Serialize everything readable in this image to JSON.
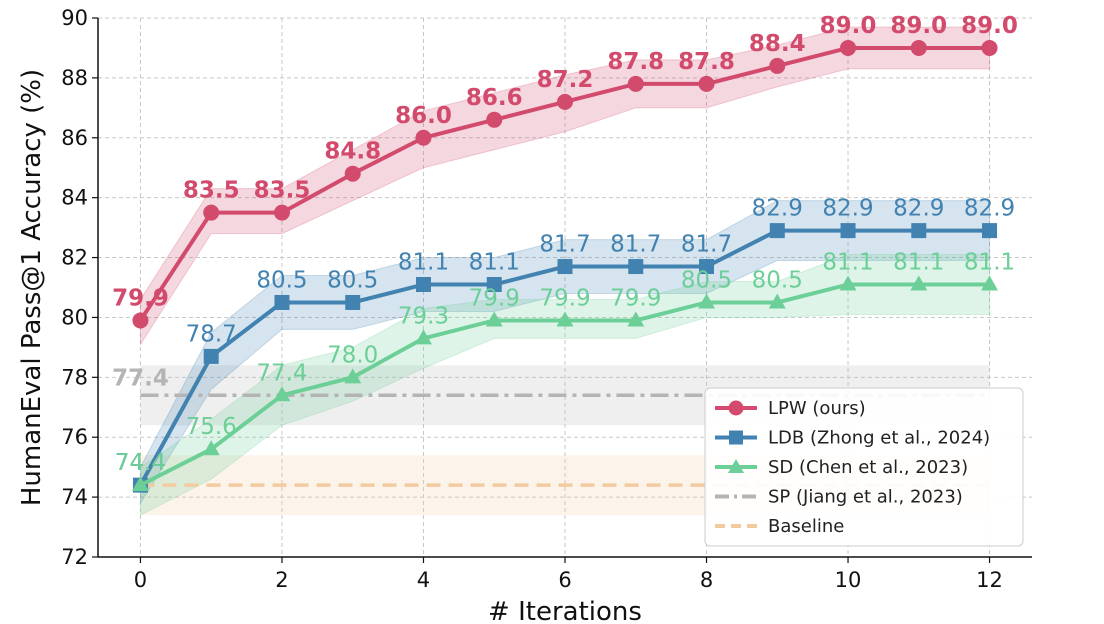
{
  "chart_data": {
    "type": "line",
    "xlabel": "# Iterations",
    "ylabel": "HumanEval Pass@1 Accuracy (%)",
    "xlim": [
      -0.6,
      12.6
    ],
    "ylim": [
      72,
      90
    ],
    "xticks": [
      0,
      2,
      4,
      6,
      8,
      10,
      12
    ],
    "yticks": [
      72,
      74,
      76,
      78,
      80,
      82,
      84,
      86,
      88,
      90
    ],
    "grid": true,
    "legend_position": "bottom-right",
    "x": [
      0,
      1,
      2,
      3,
      4,
      5,
      6,
      7,
      8,
      9,
      10,
      11,
      12
    ],
    "series": [
      {
        "name": "LPW (ours)",
        "color": "#d24a6c",
        "marker": "circle",
        "bold_labels": true,
        "values": [
          79.9,
          83.5,
          83.5,
          84.8,
          86.0,
          86.6,
          87.2,
          87.8,
          87.8,
          88.4,
          89.0,
          89.0,
          89.0
        ],
        "labels": [
          "79.9",
          "83.5",
          "83.5",
          "84.8",
          "86.0",
          "86.6",
          "87.2",
          "87.8",
          "87.8",
          "88.4",
          "89.0",
          "89.0",
          "89.0"
        ],
        "band_lower": [
          79.1,
          82.8,
          82.8,
          83.9,
          85.0,
          85.6,
          86.2,
          87.0,
          87.0,
          87.7,
          88.3,
          88.3,
          88.3
        ],
        "band_upper": [
          80.6,
          84.3,
          84.3,
          85.6,
          86.9,
          87.5,
          88.1,
          88.6,
          88.6,
          89.1,
          89.7,
          89.7,
          89.7
        ]
      },
      {
        "name": "LDB (Zhong et al., 2024)",
        "color": "#4282b0",
        "marker": "square",
        "bold_labels": false,
        "values": [
          74.4,
          78.7,
          80.5,
          80.5,
          81.1,
          81.1,
          81.7,
          81.7,
          81.7,
          82.9,
          82.9,
          82.9,
          82.9
        ],
        "labels": [
          "74.4",
          "78.7",
          "80.5",
          "80.5",
          "81.1",
          "81.1",
          "81.7",
          "81.7",
          "81.7",
          "82.9",
          "82.9",
          "82.9",
          "82.9"
        ],
        "band_lower": [
          73.8,
          77.6,
          79.6,
          79.6,
          80.2,
          80.2,
          80.8,
          80.8,
          80.8,
          81.9,
          81.9,
          81.9,
          81.9
        ],
        "band_upper": [
          75.0,
          79.5,
          81.4,
          81.4,
          82.0,
          82.0,
          82.6,
          82.6,
          82.6,
          83.9,
          83.9,
          83.9,
          83.9
        ]
      },
      {
        "name": "SD (Chen et al., 2023)",
        "color": "#6ccf97",
        "marker": "triangle",
        "bold_labels": false,
        "values": [
          74.4,
          75.6,
          77.4,
          78.0,
          79.3,
          79.9,
          79.9,
          79.9,
          80.5,
          80.5,
          81.1,
          81.1,
          81.1
        ],
        "labels": [
          "74.4",
          "75.6",
          "77.4",
          "78.0",
          "79.3",
          "79.9",
          "79.9",
          "79.9",
          "80.5",
          "80.5",
          "81.1",
          "81.1",
          "81.1"
        ],
        "band_lower": [
          73.4,
          74.6,
          76.4,
          77.2,
          78.3,
          79.3,
          79.3,
          79.3,
          80.0,
          80.0,
          80.1,
          80.1,
          80.1
        ],
        "band_upper": [
          75.0,
          76.6,
          78.4,
          79.0,
          80.3,
          80.6,
          80.6,
          80.6,
          81.2,
          81.2,
          82.1,
          82.1,
          82.1
        ]
      }
    ],
    "reference_lines": [
      {
        "name": "SP (Jiang et al., 2023)",
        "value": 77.4,
        "label": "77.4",
        "color": "#b4b4b4",
        "style": "dashdot",
        "band_lower": 76.4,
        "band_upper": 78.4
      },
      {
        "name": "Baseline",
        "value": 74.4,
        "label": "",
        "color": "#f3cba1",
        "style": "dashed",
        "band_lower": 73.4,
        "band_upper": 75.4
      }
    ]
  }
}
